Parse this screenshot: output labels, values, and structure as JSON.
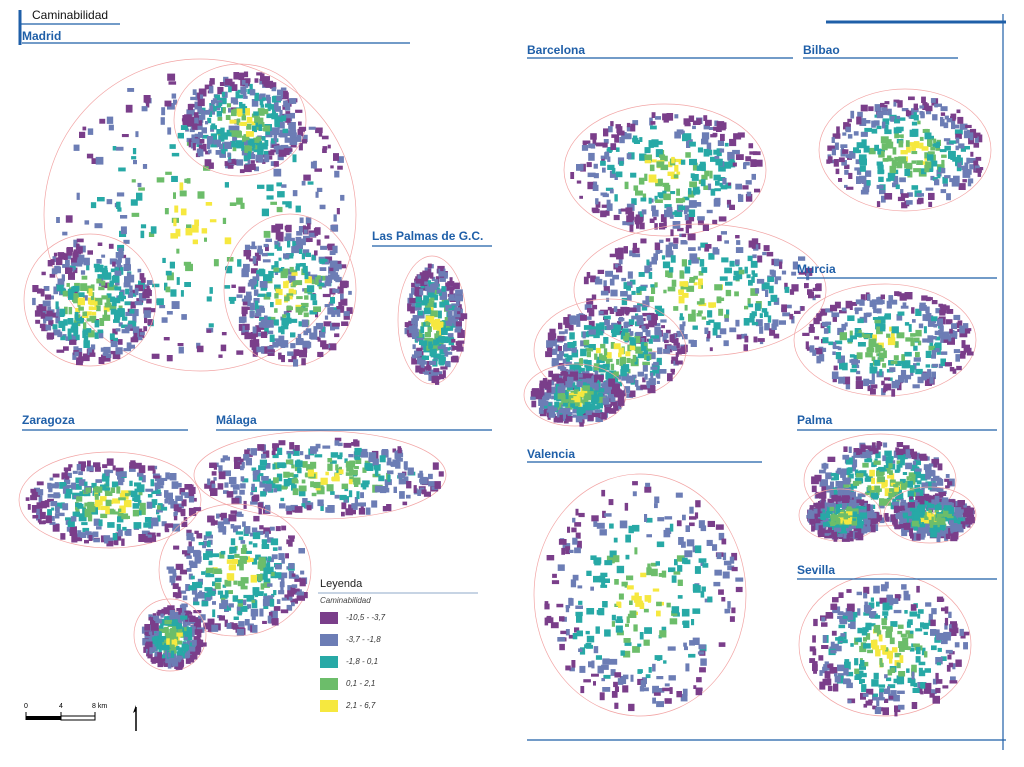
{
  "header": {
    "title": "Caminabilidad"
  },
  "cities": [
    "Madrid",
    "Las Palmas de G.C.",
    "Barcelona",
    "Bilbao",
    "Murcia",
    "Palma",
    "Sevilla",
    "Zaragoza",
    "Málaga",
    "Valencia"
  ],
  "legend": {
    "title": "Leyenda",
    "subtitle": "Caminabilidad",
    "items": [
      {
        "label": "-10,5 - -3,7",
        "color": "#7a3e8a"
      },
      {
        "label": "-3,7 - -1,8",
        "color": "#6c7db5"
      },
      {
        "label": "-1,8 - 0,1",
        "color": "#27a9a6"
      },
      {
        "label": "0,1 - 2,1",
        "color": "#6cbd6a"
      },
      {
        "label": "2,1 - 6,7",
        "color": "#f6e83f"
      }
    ]
  },
  "scale_bar": {
    "labels": [
      "0",
      "4",
      "8 km"
    ]
  }
}
